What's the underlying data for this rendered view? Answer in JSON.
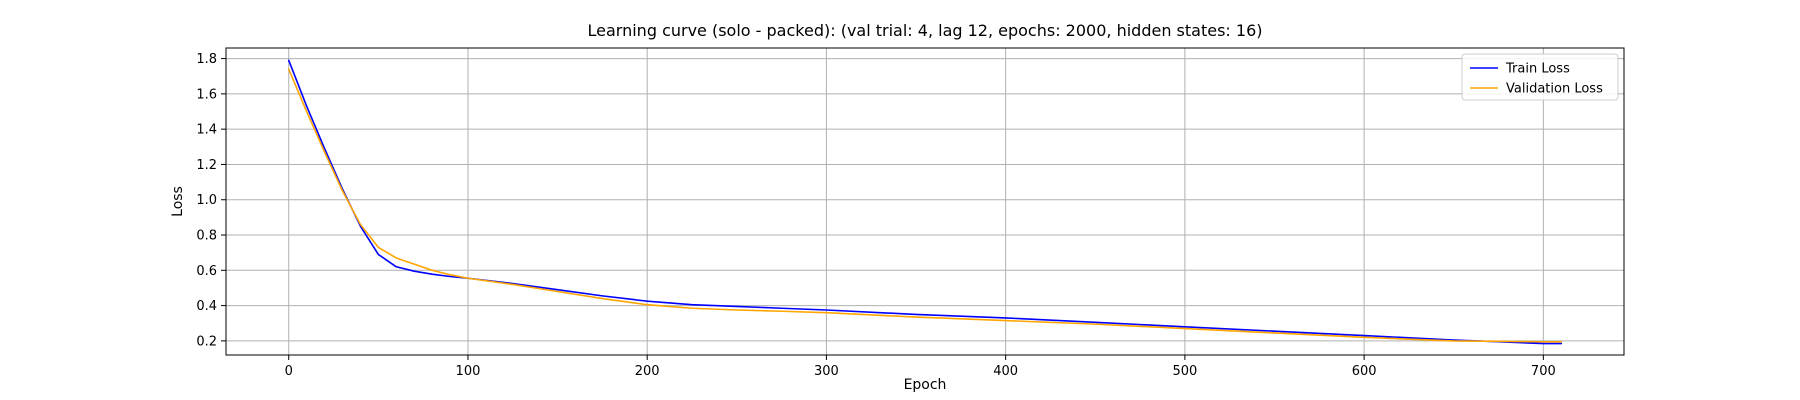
{
  "chart_data": {
    "type": "line",
    "title": "Learning curve (solo - packed): (val trial: 4, lag 12, epochs: 2000, hidden states: 16)",
    "xlabel": "Epoch",
    "ylabel": "Loss",
    "xlim": [
      -35,
      745
    ],
    "ylim": [
      0.12,
      1.86
    ],
    "xticks": [
      0,
      100,
      200,
      300,
      400,
      500,
      600,
      700
    ],
    "yticks": [
      0.2,
      0.4,
      0.6,
      0.8,
      1.0,
      1.2,
      1.4,
      1.6,
      1.8
    ],
    "xtick_labels": [
      "0",
      "100",
      "200",
      "300",
      "400",
      "500",
      "600",
      "700"
    ],
    "ytick_labels": [
      "0.2",
      "0.4",
      "0.6",
      "0.8",
      "1.0",
      "1.2",
      "1.4",
      "1.6",
      "1.8"
    ],
    "grid": true,
    "legend_position": "top-right",
    "series": [
      {
        "name": "Train Loss",
        "color": "#0000ff",
        "x": [
          0,
          10,
          20,
          30,
          40,
          50,
          60,
          70,
          80,
          90,
          100,
          125,
          150,
          175,
          200,
          225,
          250,
          275,
          300,
          350,
          400,
          450,
          500,
          550,
          600,
          650,
          700,
          710
        ],
        "y": [
          1.79,
          1.53,
          1.29,
          1.06,
          0.85,
          0.69,
          0.62,
          0.595,
          0.578,
          0.565,
          0.555,
          0.525,
          0.49,
          0.455,
          0.425,
          0.405,
          0.395,
          0.385,
          0.375,
          0.35,
          0.33,
          0.305,
          0.28,
          0.255,
          0.23,
          0.205,
          0.185,
          0.185
        ]
      },
      {
        "name": "Validation Loss",
        "color": "#ffa500",
        "x": [
          0,
          10,
          20,
          30,
          40,
          50,
          60,
          70,
          80,
          90,
          100,
          125,
          150,
          175,
          200,
          225,
          250,
          275,
          300,
          350,
          400,
          450,
          500,
          550,
          600,
          650,
          700,
          710
        ],
        "y": [
          1.74,
          1.5,
          1.27,
          1.05,
          0.86,
          0.73,
          0.67,
          0.635,
          0.6,
          0.575,
          0.555,
          0.52,
          0.48,
          0.44,
          0.405,
          0.385,
          0.375,
          0.368,
          0.36,
          0.335,
          0.315,
          0.295,
          0.27,
          0.245,
          0.22,
          0.2,
          0.195,
          0.195
        ]
      }
    ]
  }
}
